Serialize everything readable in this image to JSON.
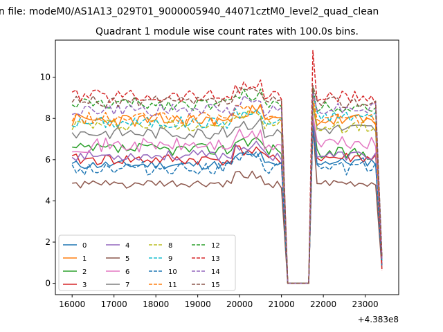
{
  "header": {
    "suptitle": "n file: modeM0/AS1A13_029T01_9000005940_44071cztM0_level2_quad_clean",
    "title": "Quadrant 1 module wise count rates with 100.0s bins."
  },
  "chart_data": {
    "type": "line",
    "title": "Quadrant 1 module wise count rates with 100.0s bins.",
    "xlabel": "",
    "ylabel": "",
    "x_offset_label": "+4.383e8",
    "xlim": [
      15600,
      23800
    ],
    "ylim": [
      -0.55,
      11.8
    ],
    "x_ticks": [
      16000,
      17000,
      18000,
      19000,
      20000,
      21000,
      22000,
      23000
    ],
    "x_tick_labels": [
      "16000",
      "17000",
      "18000",
      "19000",
      "20000",
      "21000",
      "22000",
      "23000"
    ],
    "y_ticks": [
      0,
      2,
      4,
      6,
      8,
      10
    ],
    "y_tick_labels": [
      "0",
      "2",
      "4",
      "6",
      "8",
      "10"
    ],
    "grid": false,
    "legend_position": "lower-left",
    "segments": {
      "seg1_start": 16000,
      "seg1_end": 21050,
      "gap_x": [
        21150,
        21250,
        21350,
        21450,
        21550,
        21650
      ],
      "seg2_start": 21750,
      "seg2_end": 23300,
      "end_x": 23400,
      "step": 100
    },
    "series": [
      {
        "name": "0",
        "color": "#1f77b4",
        "dash": "solid",
        "seg1_mean": 5.75,
        "seg2_mean": 5.9,
        "noise": 0.22,
        "jump1": 7.8,
        "jump2": 5.6,
        "end": 0.9,
        "seed": 11
      },
      {
        "name": "1",
        "color": "#ff7f0e",
        "dash": "solid",
        "seg1_mean": 7.9,
        "seg2_mean": 7.9,
        "noise": 0.35,
        "jump1": 8.8,
        "jump2": 7.7,
        "end": 1.2,
        "seed": 23
      },
      {
        "name": "2",
        "color": "#2ca02c",
        "dash": "solid",
        "seg1_mean": 6.5,
        "seg2_mean": 6.3,
        "noise": 0.3,
        "jump1": 8.2,
        "jump2": 6.6,
        "end": 1.0,
        "seed": 37
      },
      {
        "name": "3",
        "color": "#d62728",
        "dash": "solid",
        "seg1_mean": 6.0,
        "seg2_mean": 6.1,
        "noise": 0.28,
        "jump1": 7.9,
        "jump2": 5.9,
        "end": 0.9,
        "seed": 41
      },
      {
        "name": "4",
        "color": "#9467bd",
        "dash": "solid",
        "seg1_mean": 6.2,
        "seg2_mean": 6.2,
        "noise": 0.25,
        "jump1": 8.0,
        "jump2": 6.0,
        "end": 1.0,
        "seed": 53
      },
      {
        "name": "5",
        "color": "#8c564b",
        "dash": "solid",
        "seg1_mean": 4.8,
        "seg2_mean": 4.8,
        "noise": 0.2,
        "jump1": 7.6,
        "jump2": 4.9,
        "end": 0.7,
        "seed": 61
      },
      {
        "name": "6",
        "color": "#e377c2",
        "dash": "solid",
        "seg1_mean": 6.7,
        "seg2_mean": 6.8,
        "noise": 0.35,
        "jump1": 8.2,
        "jump2": 6.6,
        "end": 1.0,
        "seed": 71
      },
      {
        "name": "7",
        "color": "#7f7f7f",
        "dash": "solid",
        "seg1_mean": 7.3,
        "seg2_mean": 7.5,
        "noise": 0.3,
        "jump1": 8.6,
        "jump2": 7.3,
        "end": 1.1,
        "seed": 83
      },
      {
        "name": "8",
        "color": "#bcbd22",
        "dash": "dashed",
        "seg1_mean": 7.7,
        "seg2_mean": 7.6,
        "noise": 0.3,
        "jump1": 8.7,
        "jump2": 7.5,
        "end": 1.1,
        "seed": 97
      },
      {
        "name": "9",
        "color": "#17becf",
        "dash": "dashed",
        "seg1_mean": 7.8,
        "seg2_mean": 8.1,
        "noise": 0.3,
        "jump1": 9.2,
        "jump2": 7.9,
        "end": 1.1,
        "seed": 101
      },
      {
        "name": "10",
        "color": "#1f77b4",
        "dash": "dashed",
        "seg1_mean": 5.6,
        "seg2_mean": 5.6,
        "noise": 0.35,
        "jump1": 7.6,
        "jump2": 5.5,
        "end": 0.8,
        "seed": 113
      },
      {
        "name": "11",
        "color": "#ff7f0e",
        "dash": "dashed",
        "seg1_mean": 8.0,
        "seg2_mean": 8.0,
        "noise": 0.3,
        "jump1": 9.0,
        "jump2": 7.8,
        "end": 1.2,
        "seed": 127
      },
      {
        "name": "12",
        "color": "#2ca02c",
        "dash": "dashed",
        "seg1_mean": 8.7,
        "seg2_mean": 8.6,
        "noise": 0.3,
        "jump1": 9.5,
        "jump2": 8.5,
        "end": 1.3,
        "seed": 131
      },
      {
        "name": "13",
        "color": "#d62728",
        "dash": "dashed",
        "seg1_mean": 9.1,
        "seg2_mean": 9.0,
        "noise": 0.35,
        "jump1": 11.3,
        "jump2": 9.7,
        "end": 0.6,
        "seed": 139
      },
      {
        "name": "14",
        "color": "#9467bd",
        "dash": "dashed",
        "seg1_mean": 8.4,
        "seg2_mean": 8.5,
        "noise": 0.3,
        "jump1": 9.3,
        "jump2": 8.4,
        "end": 1.2,
        "seed": 149
      },
      {
        "name": "15",
        "color": "#8c564b",
        "dash": "dashed",
        "seg1_mean": 8.8,
        "seg2_mean": 8.8,
        "noise": 0.3,
        "jump1": 9.6,
        "jump2": 8.7,
        "end": 1.3,
        "seed": 157
      }
    ]
  }
}
